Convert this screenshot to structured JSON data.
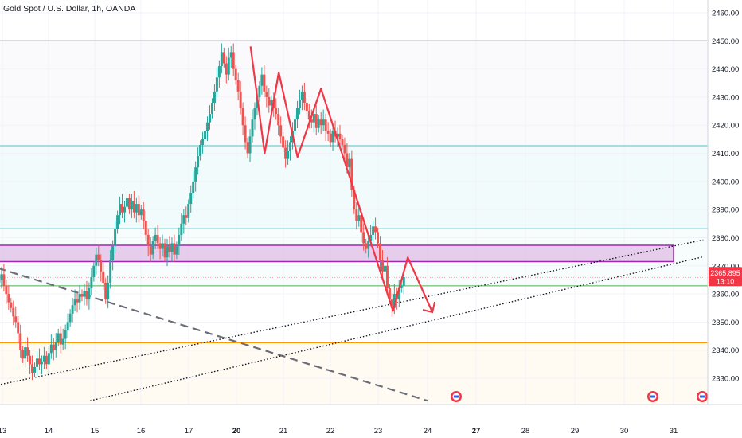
{
  "symbol_title": "Gold Spot / U.S. Dollar, 1h, OANDA",
  "colors": {
    "up": "#26a69a",
    "down": "#ef5350",
    "zone_fill": "#e1bee7",
    "zone_border": "#9c27b0",
    "projection": "#f23645",
    "level_cyan": "#4fc3c9",
    "level_green": "#4caf50",
    "level_orange": "#ff9800",
    "level_gray": "#787b86",
    "price_tag": "#f23645"
  },
  "chart_data": {
    "type": "candlestick",
    "title": "Gold Spot / U.S. Dollar, 1h, OANDA",
    "x_tick_labels": [
      "13",
      "14",
      "15",
      "16",
      "17",
      "20",
      "21",
      "22",
      "23",
      "24",
      "27",
      "28",
      "29",
      "30",
      "31"
    ],
    "y_tick_labels": [
      2330,
      2340,
      2350,
      2360,
      2370,
      2380,
      2390,
      2400,
      2410,
      2420,
      2430,
      2440,
      2450,
      2460
    ],
    "ylim": [
      2321,
      2467
    ],
    "last_price": "2365.895",
    "countdown": "13:10",
    "horizontal_levels": [
      {
        "price": 2450,
        "color": "gray"
      },
      {
        "price": 2412.7,
        "color": "cyan"
      },
      {
        "price": 2383.2,
        "color": "cyan"
      },
      {
        "price": 2362.9,
        "color": "green"
      },
      {
        "price": 2342.6,
        "color": "orange"
      }
    ],
    "zone": {
      "x_start": 12.9,
      "x_end": 31.0,
      "price_top": 2377.3,
      "price_bottom": 2371.5
    },
    "trendlines": [
      {
        "style": "dashed",
        "points": [
          [
            12.9,
            2369.2
          ],
          [
            24.0,
            2322.0
          ]
        ]
      },
      {
        "style": "dotted",
        "points": [
          [
            12.9,
            2327.6
          ],
          [
            31.6,
            2379.2
          ]
        ]
      },
      {
        "style": "dotted",
        "points": [
          [
            14.9,
            2322.0
          ],
          [
            31.6,
            2373.2
          ]
        ]
      }
    ],
    "projection_path": [
      [
        20.3,
        2448.0
      ],
      [
        20.6,
        2410.0
      ],
      [
        20.9,
        2438.8
      ],
      [
        21.3,
        2408.7
      ],
      [
        21.8,
        2433.0
      ],
      [
        23.3,
        2354.0
      ],
      [
        23.6,
        2373.0
      ],
      [
        24.3,
        2353.5
      ]
    ],
    "candles_hourly": [
      2365,
      2367,
      2363,
      2360,
      2357,
      2355,
      2352,
      2350,
      2346,
      2340,
      2337,
      2341,
      2338,
      2335,
      2332,
      2334,
      2337,
      2335,
      2336,
      2338,
      2335,
      2339,
      2342,
      2340,
      2343,
      2346,
      2342,
      2344,
      2347,
      2350,
      2353,
      2356,
      2358,
      2357,
      2360,
      2359,
      2361,
      2358,
      2362,
      2366,
      2370,
      2374,
      2372,
      2368,
      2364,
      2358,
      2364,
      2372,
      2377,
      2383,
      2388,
      2392,
      2389,
      2391,
      2394,
      2390,
      2393,
      2389,
      2392,
      2388,
      2390,
      2386,
      2381,
      2377,
      2374,
      2379,
      2381,
      2378,
      2376,
      2378,
      2373,
      2377,
      2375,
      2378,
      2374,
      2377,
      2381,
      2385,
      2388,
      2387,
      2392,
      2396,
      2400,
      2405,
      2409,
      2413,
      2415,
      2418,
      2421,
      2424,
      2428,
      2432,
      2437,
      2441,
      2446,
      2442,
      2438,
      2444,
      2446,
      2440,
      2436,
      2432,
      2426,
      2420,
      2414,
      2410,
      2416,
      2422,
      2426,
      2430,
      2434,
      2438,
      2432,
      2430,
      2427,
      2429,
      2426,
      2424,
      2420,
      2416,
      2412,
      2408,
      2411,
      2414,
      2418,
      2422,
      2426,
      2429,
      2432,
      2428,
      2425,
      2422,
      2421,
      2424,
      2419,
      2422,
      2420,
      2422,
      2418,
      2417,
      2414,
      2418,
      2416,
      2417,
      2415,
      2413,
      2410,
      2405,
      2408,
      2397,
      2390,
      2386,
      2388,
      2382,
      2378,
      2376,
      2379,
      2381,
      2384,
      2382,
      2378,
      2372,
      2368,
      2370,
      2362,
      2358,
      2355,
      2360,
      2358,
      2362,
      2363,
      2366
    ]
  }
}
